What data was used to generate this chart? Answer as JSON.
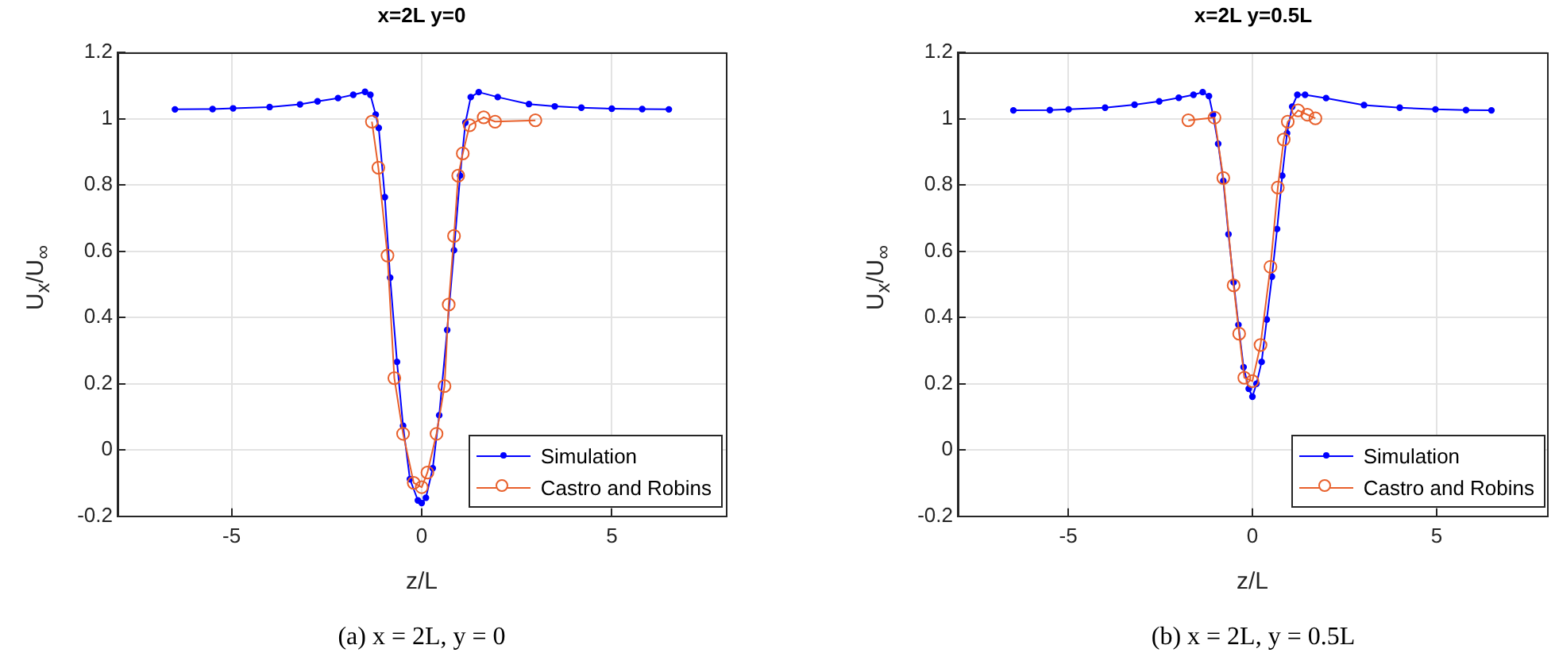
{
  "chart_data": [
    {
      "type": "line",
      "title": "x=2L y=0",
      "xlabel": "z/L",
      "ylabel": "U$_{x}$/U$_{∞}$",
      "xlim": [
        -8,
        8
      ],
      "xticks": [
        -5,
        0,
        5
      ],
      "ylim": [
        -0.2,
        1.2
      ],
      "yticks": [
        -0.2,
        0,
        0.2,
        0.4,
        0.6,
        0.8,
        1,
        1.2
      ],
      "grid": true,
      "legend": "bottom right",
      "annotations": [
        "(a)  x = 2L, y = 0"
      ],
      "series": [
        {
          "name": "Simulation",
          "color": "#0000ff",
          "marker": "circle",
          "x": [
            -6.49,
            -5.5,
            -4.96,
            -4,
            -3.2,
            -2.74,
            -2.2,
            -1.8,
            -1.49,
            -1.35,
            -1.21,
            -1.13,
            -0.97,
            -0.83,
            -0.65,
            -0.49,
            -0.31,
            -0.1,
            0,
            0.11,
            0.29,
            0.46,
            0.67,
            0.85,
            1.01,
            1.15,
            1.29,
            1.5,
            2,
            2.82,
            3.5,
            4.2,
            5,
            5.8,
            6.5
          ],
          "values": [
            1.028,
            1.029,
            1.031,
            1.035,
            1.043,
            1.052,
            1.062,
            1.072,
            1.081,
            1.072,
            1.012,
            0.972,
            0.763,
            0.52,
            0.266,
            0.073,
            -0.088,
            -0.152,
            -0.16,
            -0.144,
            -0.055,
            0.105,
            0.362,
            0.603,
            0.828,
            0.988,
            1.065,
            1.08,
            1.065,
            1.044,
            1.037,
            1.033,
            1.03,
            1.029,
            1.028
          ]
        },
        {
          "name": "Castro and Robins",
          "color": "#e8602c",
          "marker": "circle",
          "x": [
            -1.31,
            -1.14,
            -0.9,
            -0.72,
            -0.49,
            -0.21,
            0,
            0.15,
            0.39,
            0.6,
            0.71,
            0.85,
            0.96,
            1.08,
            1.26,
            1.63,
            1.93,
            2.99
          ],
          "values": [
            0.991,
            0.852,
            0.587,
            0.217,
            0.049,
            -0.099,
            -0.112,
            -0.068,
            0.049,
            0.193,
            0.439,
            0.646,
            0.828,
            0.895,
            0.98,
            1.004,
            0.991,
            0.995
          ]
        }
      ]
    },
    {
      "type": "line",
      "title": "x=2L y=0.5L",
      "xlabel": "z/L",
      "ylabel": "U$_{x}$/U$_{∞}$",
      "xlim": [
        -8,
        8
      ],
      "xticks": [
        -5,
        0,
        5
      ],
      "ylim": [
        -0.2,
        1.2
      ],
      "yticks": [
        -0.2,
        0,
        0.2,
        0.4,
        0.6,
        0.8,
        1,
        1.2
      ],
      "grid": true,
      "legend": "bottom right",
      "annotations": [
        "(b)  x = 2L, y = 0.5L"
      ],
      "series": [
        {
          "name": "Simulation",
          "color": "#0000ff",
          "marker": "circle",
          "x": [
            -6.49,
            -5.5,
            -4.99,
            -4,
            -3.2,
            -2.53,
            -2,
            -1.6,
            -1.35,
            -1.18,
            -1.07,
            -0.93,
            -0.79,
            -0.65,
            -0.51,
            -0.38,
            -0.24,
            -0.1,
            0,
            0.11,
            0.25,
            0.39,
            0.53,
            0.67,
            0.81,
            0.94,
            1.08,
            1.22,
            1.43,
            2,
            3.03,
            4,
            4.97,
            5.8,
            6.49
          ],
          "values": [
            1.025,
            1.026,
            1.028,
            1.033,
            1.042,
            1.052,
            1.063,
            1.072,
            1.08,
            1.068,
            1.012,
            0.924,
            0.812,
            0.651,
            0.506,
            0.378,
            0.25,
            0.185,
            0.161,
            0.2,
            0.266,
            0.394,
            0.523,
            0.667,
            0.828,
            0.956,
            1.036,
            1.072,
            1.072,
            1.062,
            1.041,
            1.033,
            1.028,
            1.026,
            1.025
          ]
        },
        {
          "name": "Castro and Robins",
          "color": "#e8602c",
          "marker": "circle",
          "x": [
            -1.74,
            -1.03,
            -0.79,
            -0.51,
            -0.36,
            -0.22,
            0,
            0.22,
            0.49,
            0.69,
            0.85,
            0.96,
            1.24,
            1.49,
            1.71
          ],
          "values": [
            0.995,
            1.003,
            0.821,
            0.497,
            0.351,
            0.218,
            0.208,
            0.317,
            0.553,
            0.792,
            0.937,
            0.991,
            1.025,
            1.012,
            1.001
          ]
        }
      ]
    }
  ]
}
